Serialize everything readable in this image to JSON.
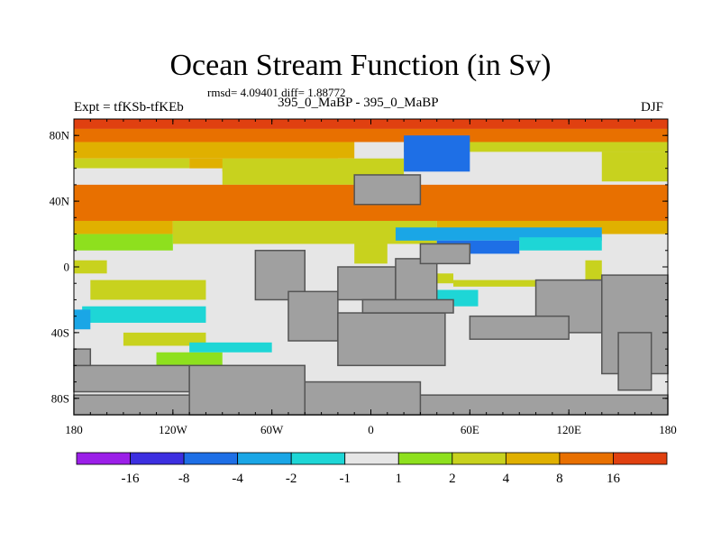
{
  "chart_data": {
    "type": "heatmap",
    "title": "Ocean Stream Function (in Sv)",
    "stats_line": "rmsd= 4.09401 diff= 1.88772",
    "left_label": "Expt = tfKSb-tfKEb",
    "center_label": "395_0_MaBP - 395_0_MaBP",
    "right_label": "DJF",
    "x_ticks": [
      {
        "value": -180,
        "label": "180"
      },
      {
        "value": -120,
        "label": "120W"
      },
      {
        "value": -60,
        "label": "60W"
      },
      {
        "value": 0,
        "label": "0"
      },
      {
        "value": 60,
        "label": "60E"
      },
      {
        "value": 120,
        "label": "120E"
      },
      {
        "value": 180,
        "label": "180"
      }
    ],
    "y_ticks": [
      {
        "value": 80,
        "label": "80N"
      },
      {
        "value": 40,
        "label": "40N"
      },
      {
        "value": 0,
        "label": "0"
      },
      {
        "value": -40,
        "label": "40S"
      },
      {
        "value": -80,
        "label": "80S"
      }
    ],
    "xlim": [
      -180,
      180
    ],
    "ylim": [
      -90,
      90
    ],
    "land_color": "#a0a0a0",
    "colorbar": {
      "colors": [
        "#9b1fe8",
        "#3c2fe0",
        "#1e6fe6",
        "#1aa6e6",
        "#1ed6d6",
        "#e6e6e6",
        "#8ee01e",
        "#c8d21e",
        "#e0b000",
        "#e87000",
        "#e04010"
      ],
      "labels": [
        "-16",
        "-8",
        "-4",
        "-2",
        "-1",
        "1",
        "2",
        "4",
        "8",
        "16"
      ]
    },
    "cells": [
      {
        "lon": [
          -180,
          180
        ],
        "lat": [
          84,
          90
        ],
        "level": 10
      },
      {
        "lon": [
          -180,
          180
        ],
        "lat": [
          76,
          84
        ],
        "level": 9
      },
      {
        "lon": [
          -180,
          -10
        ],
        "lat": [
          66,
          76
        ],
        "level": 8
      },
      {
        "lon": [
          -180,
          -110
        ],
        "lat": [
          60,
          66
        ],
        "level": 7
      },
      {
        "lon": [
          -110,
          -20
        ],
        "lat": [
          58,
          66
        ],
        "level": 8
      },
      {
        "lon": [
          -180,
          -90
        ],
        "lat": [
          52,
          60
        ],
        "level": 5
      },
      {
        "lon": [
          -90,
          20
        ],
        "lat": [
          50,
          66
        ],
        "level": 7
      },
      {
        "lon": [
          20,
          180
        ],
        "lat": [
          70,
          76
        ],
        "level": 7
      },
      {
        "lon": [
          20,
          140
        ],
        "lat": [
          60,
          70
        ],
        "level": 5
      },
      {
        "lon": [
          140,
          180
        ],
        "lat": [
          52,
          70
        ],
        "level": 7
      },
      {
        "lon": [
          -180,
          180
        ],
        "lat": [
          28,
          50
        ],
        "level": 9
      },
      {
        "lon": [
          -180,
          -120
        ],
        "lat": [
          20,
          28
        ],
        "level": 8
      },
      {
        "lon": [
          -120,
          40
        ],
        "lat": [
          14,
          28
        ],
        "level": 7
      },
      {
        "lon": [
          40,
          180
        ],
        "lat": [
          20,
          28
        ],
        "level": 8
      },
      {
        "lon": [
          -180,
          -120
        ],
        "lat": [
          10,
          20
        ],
        "level": 6
      },
      {
        "lon": [
          -10,
          10
        ],
        "lat": [
          2,
          14
        ],
        "level": 7
      },
      {
        "lon": [
          -180,
          -160
        ],
        "lat": [
          -4,
          4
        ],
        "level": 7
      },
      {
        "lon": [
          -170,
          -100
        ],
        "lat": [
          -20,
          -8
        ],
        "level": 7
      },
      {
        "lon": [
          -175,
          -100
        ],
        "lat": [
          -34,
          -24
        ],
        "level": 4
      },
      {
        "lon": [
          -180,
          -170
        ],
        "lat": [
          -38,
          -26
        ],
        "level": 3
      },
      {
        "lon": [
          -150,
          -100
        ],
        "lat": [
          -48,
          -40
        ],
        "level": 7
      },
      {
        "lon": [
          -130,
          -90
        ],
        "lat": [
          -60,
          -52
        ],
        "level": 6
      },
      {
        "lon": [
          -110,
          -60
        ],
        "lat": [
          -52,
          -46
        ],
        "level": 4
      },
      {
        "lon": [
          10,
          50
        ],
        "lat": [
          -10,
          -4
        ],
        "level": 7
      },
      {
        "lon": [
          15,
          40
        ],
        "lat": [
          -28,
          -20
        ],
        "level": 7
      },
      {
        "lon": [
          30,
          65
        ],
        "lat": [
          -24,
          -14
        ],
        "level": 4
      },
      {
        "lon": [
          50,
          130
        ],
        "lat": [
          -12,
          -8
        ],
        "level": 7
      },
      {
        "lon": [
          130,
          140
        ],
        "lat": [
          -8,
          4
        ],
        "level": 7
      },
      {
        "lon": [
          165,
          180
        ],
        "lat": [
          -36,
          -26
        ],
        "level": 3
      },
      {
        "lon": [
          15,
          140
        ],
        "lat": [
          16,
          24
        ],
        "level": 3
      },
      {
        "lon": [
          40,
          90
        ],
        "lat": [
          8,
          16
        ],
        "level": 2
      },
      {
        "lon": [
          90,
          140
        ],
        "lat": [
          10,
          18
        ],
        "level": 4
      },
      {
        "lon": [
          20,
          60
        ],
        "lat": [
          58,
          80
        ],
        "level": 2
      }
    ],
    "land": [
      {
        "lon": [
          -70,
          -40
        ],
        "lat": [
          -20,
          10
        ]
      },
      {
        "lon": [
          -50,
          -20
        ],
        "lat": [
          -45,
          -15
        ]
      },
      {
        "lon": [
          -20,
          15
        ],
        "lat": [
          -20,
          0
        ]
      },
      {
        "lon": [
          -20,
          45
        ],
        "lat": [
          -60,
          -28
        ]
      },
      {
        "lon": [
          15,
          40
        ],
        "lat": [
          -25,
          5
        ]
      },
      {
        "lon": [
          -5,
          50
        ],
        "lat": [
          -28,
          -20
        ]
      },
      {
        "lon": [
          100,
          140
        ],
        "lat": [
          -40,
          -8
        ]
      },
      {
        "lon": [
          60,
          120
        ],
        "lat": [
          -44,
          -30
        ]
      },
      {
        "lon": [
          140,
          180
        ],
        "lat": [
          -65,
          -5
        ]
      },
      {
        "lon": [
          150,
          170
        ],
        "lat": [
          -75,
          -40
        ]
      },
      {
        "lon": [
          -180,
          180
        ],
        "lat": [
          -90,
          -78
        ]
      },
      {
        "lon": [
          -180,
          -110
        ],
        "lat": [
          -76,
          -60
        ]
      },
      {
        "lon": [
          -110,
          -40
        ],
        "lat": [
          -90,
          -60
        ]
      },
      {
        "lon": [
          -40,
          30
        ],
        "lat": [
          -90,
          -70
        ]
      },
      {
        "lon": [
          -180,
          -170
        ],
        "lat": [
          -60,
          -50
        ]
      },
      {
        "lon": [
          -10,
          30
        ],
        "lat": [
          38,
          56
        ]
      },
      {
        "lon": [
          30,
          60
        ],
        "lat": [
          2,
          14
        ]
      }
    ]
  }
}
